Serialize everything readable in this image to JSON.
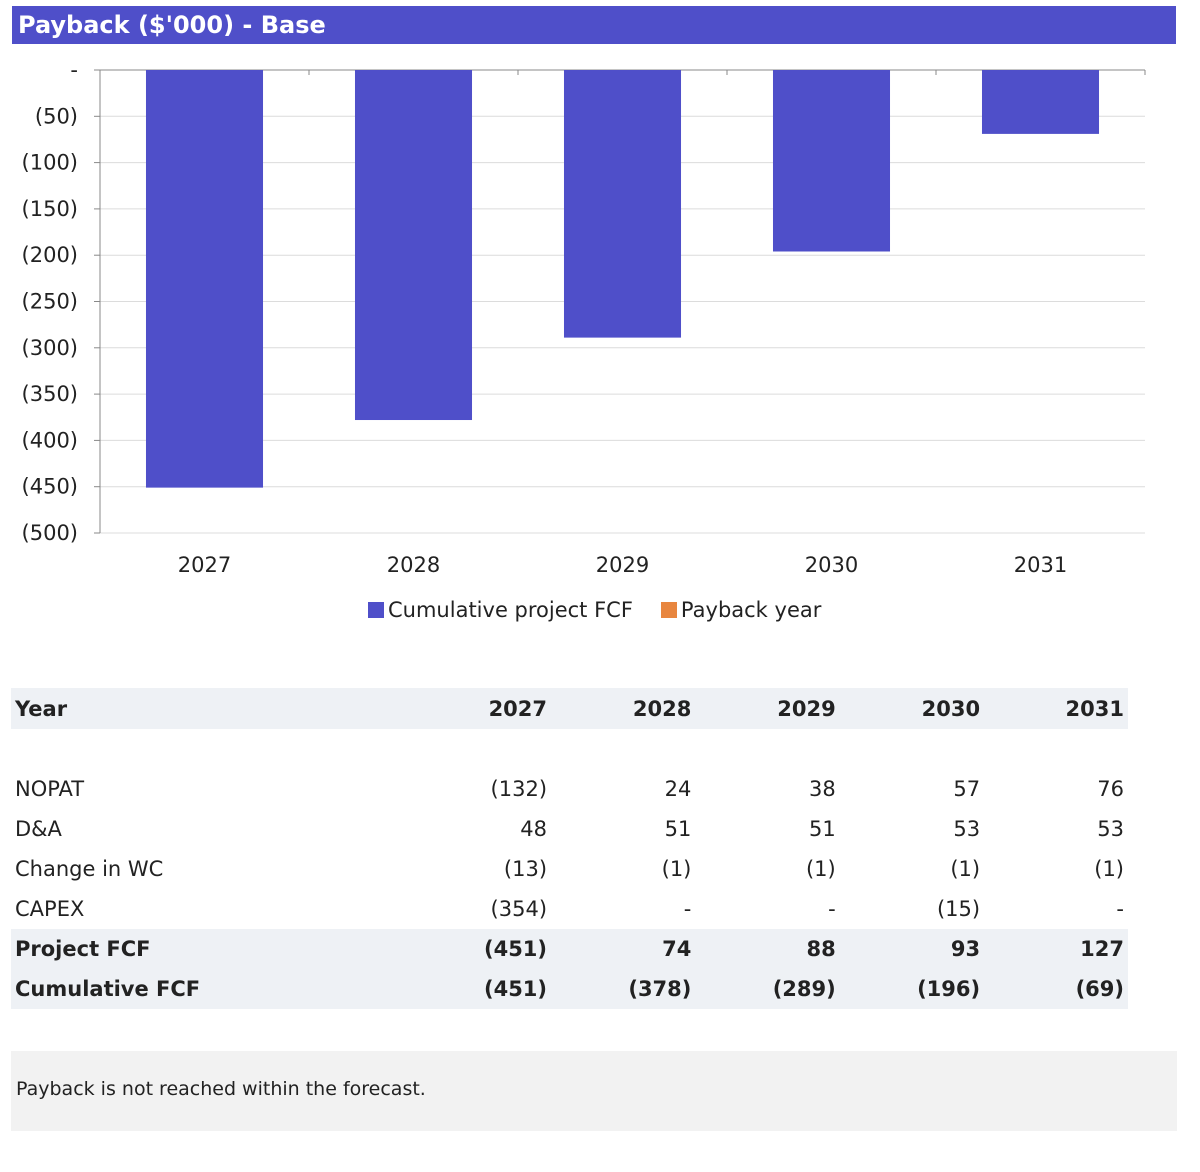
{
  "title": "Payback ($'000) - Base",
  "chart_data": {
    "type": "bar",
    "categories": [
      "2027",
      "2028",
      "2029",
      "2030",
      "2031"
    ],
    "series": [
      {
        "name": "Cumulative project FCF",
        "color": "#4f4fc9",
        "values": [
          -451,
          -378,
          -289,
          -196,
          -69
        ]
      },
      {
        "name": "Payback year",
        "color": "#e8863f",
        "values": [
          0,
          0,
          0,
          0,
          0
        ]
      }
    ],
    "ylim": [
      -500,
      0
    ],
    "yticks": [
      0,
      -50,
      -100,
      -150,
      -200,
      -250,
      -300,
      -350,
      -400,
      -450,
      -500
    ],
    "ytick_labels": [
      "-",
      "(50)",
      "(100)",
      "(150)",
      "(200)",
      "(250)",
      "(300)",
      "(350)",
      "(400)",
      "(450)",
      "(500)"
    ],
    "grid": true,
    "legend": "bottom"
  },
  "table": {
    "header": [
      "Year",
      "2027",
      "2028",
      "2029",
      "2030",
      "2031"
    ],
    "rows": [
      {
        "label": "NOPAT",
        "values": [
          "(132)",
          "24",
          "38",
          "57",
          "76"
        ],
        "bold": false
      },
      {
        "label": "D&A",
        "values": [
          "48",
          "51",
          "51",
          "53",
          "53"
        ],
        "bold": false
      },
      {
        "label": "Change in WC",
        "values": [
          "(13)",
          "(1)",
          "(1)",
          "(1)",
          "(1)"
        ],
        "bold": false
      },
      {
        "label": "CAPEX",
        "values": [
          "(354)",
          "-",
          "-",
          "(15)",
          "-"
        ],
        "bold": false
      },
      {
        "label": "Project FCF",
        "values": [
          "(451)",
          "74",
          "88",
          "93",
          "127"
        ],
        "bold": true
      },
      {
        "label": "Cumulative FCF",
        "values": [
          "(451)",
          "(378)",
          "(289)",
          "(196)",
          "(69)"
        ],
        "bold": true
      }
    ]
  },
  "note": "Payback is not reached within the forecast."
}
